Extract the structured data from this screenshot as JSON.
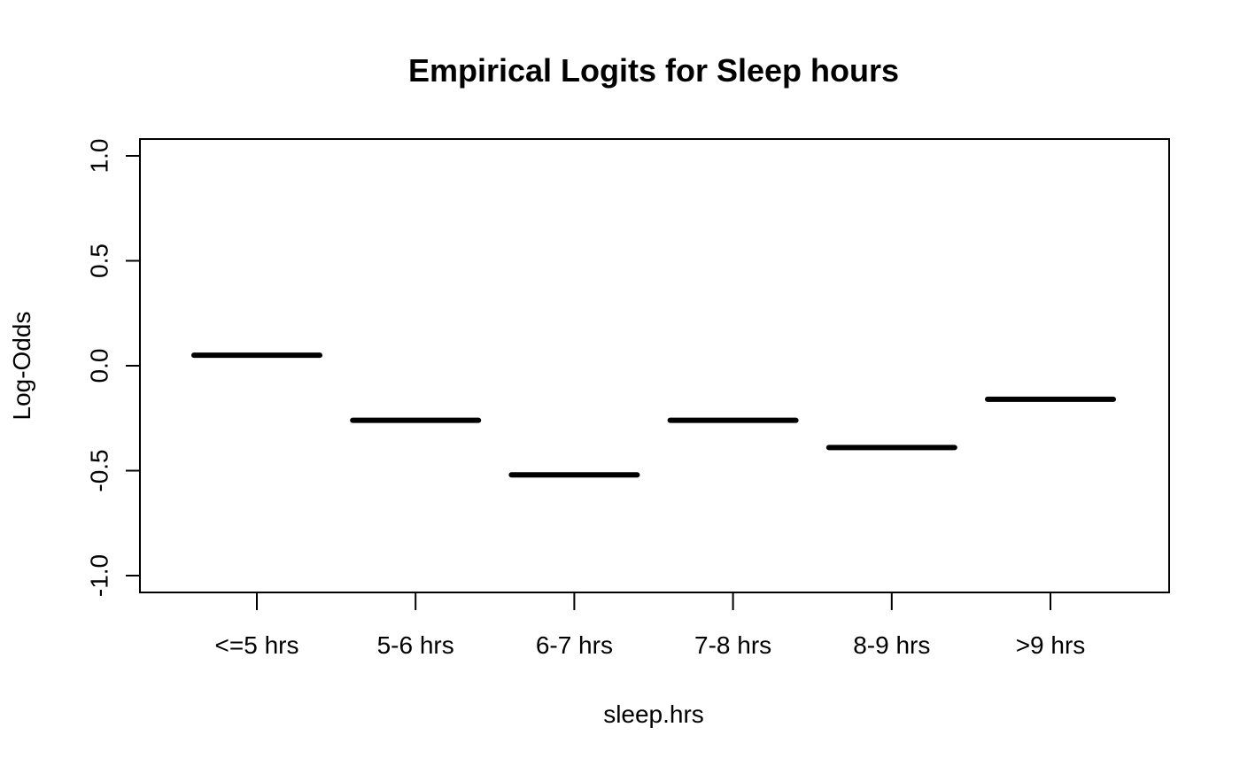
{
  "chart_data": {
    "type": "bar",
    "title": "Empirical Logits for Sleep hours",
    "xlabel": "sleep.hrs",
    "ylabel": "Log-Odds",
    "categories": [
      "<=5 hrs",
      "5-6 hrs",
      "6-7 hrs",
      "7-8 hrs",
      "8-9 hrs",
      ">9 hrs"
    ],
    "values": [
      0.05,
      -0.26,
      -0.52,
      -0.26,
      -0.39,
      -0.16
    ],
    "ylim": [
      -1.0,
      1.0
    ],
    "yticks": [
      -1.0,
      -0.5,
      0.0,
      0.5,
      1.0
    ],
    "ytick_labels": [
      "-1.0",
      "-0.5",
      "0.0",
      "0.5",
      "1.0"
    ],
    "grid": false,
    "legend": "none",
    "mark_color": "#000000"
  }
}
